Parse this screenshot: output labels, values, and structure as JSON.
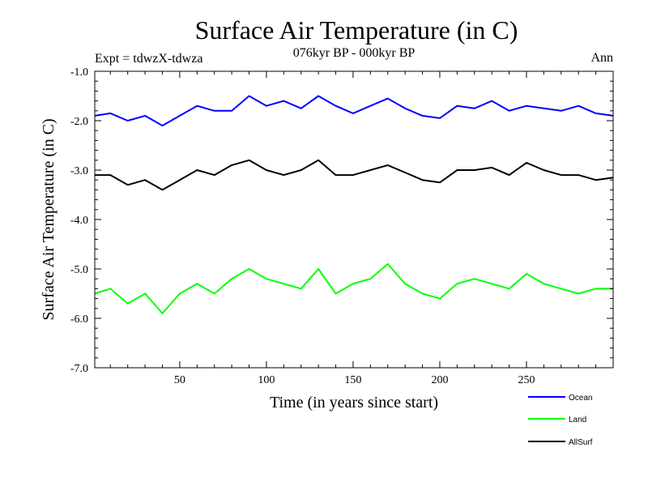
{
  "chart_data": {
    "type": "line",
    "title": "Surface Air Temperature (in C)",
    "subtitle": "076kyr BP - 000kyr BP",
    "left_label": "Expt = tdwzX-tdwza",
    "right_label": "Ann",
    "xlabel": "Time (in years since start)",
    "ylabel": "Surface Air Temperature (in C)",
    "xlim": [
      1,
      300
    ],
    "ylim": [
      -7.0,
      -1.0
    ],
    "x_ticks": [
      50,
      100,
      150,
      200,
      250
    ],
    "x_tick_labels": [
      "50",
      "100",
      "150",
      "200",
      "250"
    ],
    "y_ticks": [
      -1.0,
      -2.0,
      -3.0,
      -4.0,
      -5.0,
      -6.0,
      -7.0
    ],
    "y_tick_labels": [
      "-1.0",
      "-2.0",
      "-3.0",
      "-4.0",
      "-5.0",
      "-6.0",
      "-7.0"
    ],
    "grid": false,
    "legend_position": "bottom-right, below plot",
    "series": [
      {
        "name": "Ocean",
        "color": "#0000ff",
        "x": [
          1,
          10,
          20,
          30,
          40,
          50,
          60,
          70,
          80,
          90,
          100,
          110,
          120,
          130,
          140,
          150,
          160,
          170,
          180,
          190,
          200,
          210,
          220,
          230,
          240,
          250,
          260,
          270,
          280,
          290,
          300
        ],
        "y": [
          -1.9,
          -1.85,
          -2.0,
          -1.9,
          -2.1,
          -1.9,
          -1.7,
          -1.8,
          -1.8,
          -1.5,
          -1.7,
          -1.6,
          -1.75,
          -1.5,
          -1.7,
          -1.85,
          -1.7,
          -1.55,
          -1.75,
          -1.9,
          -1.95,
          -1.7,
          -1.75,
          -1.6,
          -1.8,
          -1.7,
          -1.75,
          -1.8,
          -1.7,
          -1.85,
          -1.9
        ]
      },
      {
        "name": "Land",
        "color": "#00ff00",
        "x": [
          1,
          10,
          20,
          30,
          40,
          50,
          60,
          70,
          80,
          90,
          100,
          110,
          120,
          130,
          140,
          150,
          160,
          170,
          180,
          190,
          200,
          210,
          220,
          230,
          240,
          250,
          260,
          270,
          280,
          290,
          300
        ],
        "y": [
          -5.5,
          -5.4,
          -5.7,
          -5.5,
          -5.9,
          -5.5,
          -5.3,
          -5.5,
          -5.2,
          -5.0,
          -5.2,
          -5.3,
          -5.4,
          -5.0,
          -5.5,
          -5.3,
          -5.2,
          -4.9,
          -5.3,
          -5.5,
          -5.6,
          -5.3,
          -5.2,
          -5.3,
          -5.4,
          -5.1,
          -5.3,
          -5.4,
          -5.5,
          -5.4,
          -5.4
        ]
      },
      {
        "name": "AllSurf",
        "color": "#000000",
        "x": [
          1,
          10,
          20,
          30,
          40,
          50,
          60,
          70,
          80,
          90,
          100,
          110,
          120,
          130,
          140,
          150,
          160,
          170,
          180,
          190,
          200,
          210,
          220,
          230,
          240,
          250,
          260,
          270,
          280,
          290,
          300
        ],
        "y": [
          -3.1,
          -3.1,
          -3.3,
          -3.2,
          -3.4,
          -3.2,
          -3.0,
          -3.1,
          -2.9,
          -2.8,
          -3.0,
          -3.1,
          -3.0,
          -2.8,
          -3.1,
          -3.1,
          -3.0,
          -2.9,
          -3.05,
          -3.2,
          -3.25,
          -3.0,
          -3.0,
          -2.95,
          -3.1,
          -2.85,
          -3.0,
          -3.1,
          -3.1,
          -3.2,
          -3.15
        ]
      }
    ]
  }
}
